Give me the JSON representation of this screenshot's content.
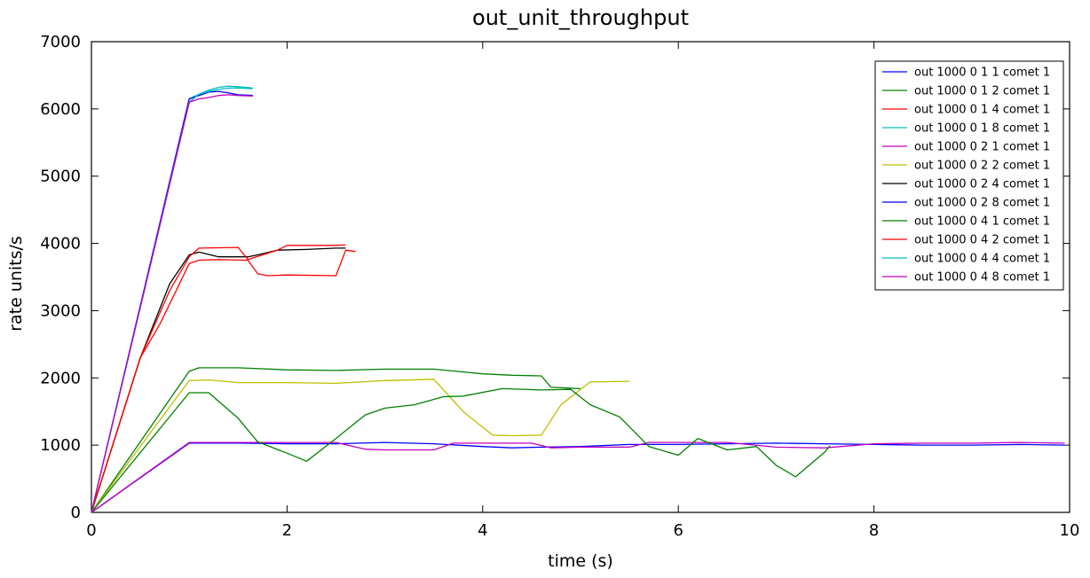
{
  "chart_data": {
    "type": "line",
    "title": "out_unit_throughput",
    "xlabel": "time (s)",
    "ylabel": "rate units/s",
    "xlim": [
      0,
      10
    ],
    "ylim": [
      0,
      7000
    ],
    "xticks": [
      0,
      2,
      4,
      6,
      8,
      10
    ],
    "yticks": [
      0,
      1000,
      2000,
      3000,
      4000,
      5000,
      6000,
      7000
    ],
    "grid": false,
    "legend_position": "top-right",
    "series": [
      {
        "name": "out 1000 0 1 1 comet 1",
        "color": "#0000ff",
        "x": [
          0,
          1.0,
          1.5,
          2.0,
          2.5,
          3.0,
          3.5,
          4.0,
          4.3,
          4.6,
          5.0,
          5.5,
          6.0,
          6.5,
          7.0,
          7.5,
          8.0,
          8.5,
          9.0,
          9.5,
          9.95
        ],
        "y": [
          0,
          1030,
          1030,
          1020,
          1020,
          1040,
          1020,
          980,
          960,
          970,
          980,
          1010,
          1010,
          1020,
          1030,
          1020,
          1010,
          1000,
          1000,
          1010,
          1000
        ]
      },
      {
        "name": "out 1000 0 1 2 comet 1",
        "color": "#008000",
        "x": [
          0,
          1.0,
          1.1,
          1.5,
          2.0,
          2.5,
          3.0,
          3.5,
          4.0,
          4.3,
          4.6,
          4.7,
          5.0
        ],
        "y": [
          0,
          2100,
          2150,
          2150,
          2120,
          2110,
          2130,
          2130,
          2060,
          2040,
          2030,
          1860,
          1840
        ]
      },
      {
        "name": "out 1000 0 1 4 comet 1",
        "color": "#ff0000",
        "x": [
          0,
          0.5,
          0.7,
          0.8,
          1.0,
          1.1,
          1.3,
          1.6,
          1.7,
          1.8,
          2.0,
          2.5,
          2.6,
          2.7
        ],
        "y": [
          0,
          2300,
          2800,
          3100,
          3700,
          3750,
          3760,
          3750,
          3550,
          3520,
          3530,
          3520,
          3900,
          3880
        ]
      },
      {
        "name": "out 1000 0 1 8 comet 1",
        "color": "#00bfbf",
        "x": [
          0,
          1.0,
          1.1,
          1.2,
          1.3,
          1.4,
          1.5,
          1.65
        ],
        "y": [
          0,
          6150,
          6220,
          6280,
          6320,
          6340,
          6330,
          6310
        ]
      },
      {
        "name": "out 1000 0 2 1 comet 1",
        "color": "#bf00bf",
        "x": [
          0,
          1.0,
          1.5,
          2.0,
          2.5,
          2.8,
          3.0,
          3.5,
          3.7,
          4.0,
          4.5,
          4.7,
          5.0,
          5.5,
          5.7,
          6.0,
          6.5,
          7.0,
          7.5,
          8.0,
          8.5,
          9.0,
          9.5,
          9.95
        ],
        "y": [
          0,
          1040,
          1040,
          1040,
          1040,
          940,
          930,
          930,
          1030,
          1030,
          1030,
          960,
          970,
          970,
          1040,
          1040,
          1040,
          970,
          960,
          1020,
          1030,
          1030,
          1040,
          1030
        ]
      },
      {
        "name": "out 1000 0 2 2 comet 1",
        "color": "#bfbf00",
        "x": [
          0,
          1.0,
          1.2,
          1.5,
          2.0,
          2.5,
          3.0,
          3.5,
          3.8,
          4.1,
          4.3,
          4.6,
          4.8,
          5.1,
          5.5
        ],
        "y": [
          0,
          1960,
          1970,
          1930,
          1930,
          1920,
          1960,
          1980,
          1500,
          1150,
          1140,
          1150,
          1600,
          1940,
          1950
        ]
      },
      {
        "name": "out 1000 0 2 4 comet 1",
        "color": "#000000",
        "x": [
          0,
          0.5,
          0.8,
          1.0,
          1.1,
          1.3,
          1.6,
          1.7,
          1.9,
          2.2,
          2.5,
          2.6
        ],
        "y": [
          0,
          2300,
          3400,
          3830,
          3870,
          3800,
          3800,
          3830,
          3900,
          3910,
          3930,
          3930
        ]
      },
      {
        "name": "out 1000 0 2 8 comet 1",
        "color": "#0000ff",
        "x": [
          0,
          1.0,
          1.1,
          1.2,
          1.3,
          1.4,
          1.5,
          1.65
        ],
        "y": [
          0,
          6150,
          6200,
          6250,
          6260,
          6240,
          6210,
          6200
        ]
      },
      {
        "name": "out 1000 0 4 1 comet 1",
        "color": "#008000",
        "x": [
          0,
          1.0,
          1.2,
          1.5,
          1.7,
          2.0,
          2.2,
          2.5,
          2.8,
          3.0,
          3.3,
          3.6,
          3.8,
          4.2,
          4.6,
          4.9,
          5.1,
          5.4,
          5.7,
          6.0,
          6.2,
          6.5,
          6.8,
          7.0,
          7.2,
          7.5,
          7.55
        ],
        "y": [
          0,
          1780,
          1780,
          1400,
          1050,
          880,
          760,
          1100,
          1450,
          1550,
          1600,
          1720,
          1730,
          1840,
          1820,
          1830,
          1600,
          1420,
          980,
          850,
          1100,
          930,
          980,
          700,
          530,
          900,
          990
        ]
      },
      {
        "name": "out 1000 0 4 2 comet 1",
        "color": "#ff0000",
        "x": [
          0,
          0.5,
          0.8,
          1.0,
          1.1,
          1.5,
          1.6,
          1.9,
          2.0,
          2.5,
          2.6
        ],
        "y": [
          0,
          2300,
          3300,
          3800,
          3930,
          3940,
          3760,
          3900,
          3970,
          3970,
          3980
        ]
      },
      {
        "name": "out 1000 0 4 4 comet 1",
        "color": "#00bfbf",
        "x": [
          0,
          1.0,
          1.1,
          1.2,
          1.3,
          1.4,
          1.5,
          1.65
        ],
        "y": [
          0,
          6100,
          6220,
          6260,
          6290,
          6310,
          6310,
          6300
        ]
      },
      {
        "name": "out 1000 0 4 8 comet 1",
        "color": "#bf00bf",
        "x": [
          0,
          1.0,
          1.1,
          1.2,
          1.3,
          1.4,
          1.5,
          1.65
        ],
        "y": [
          0,
          6100,
          6150,
          6170,
          6200,
          6210,
          6200,
          6190
        ]
      }
    ]
  }
}
